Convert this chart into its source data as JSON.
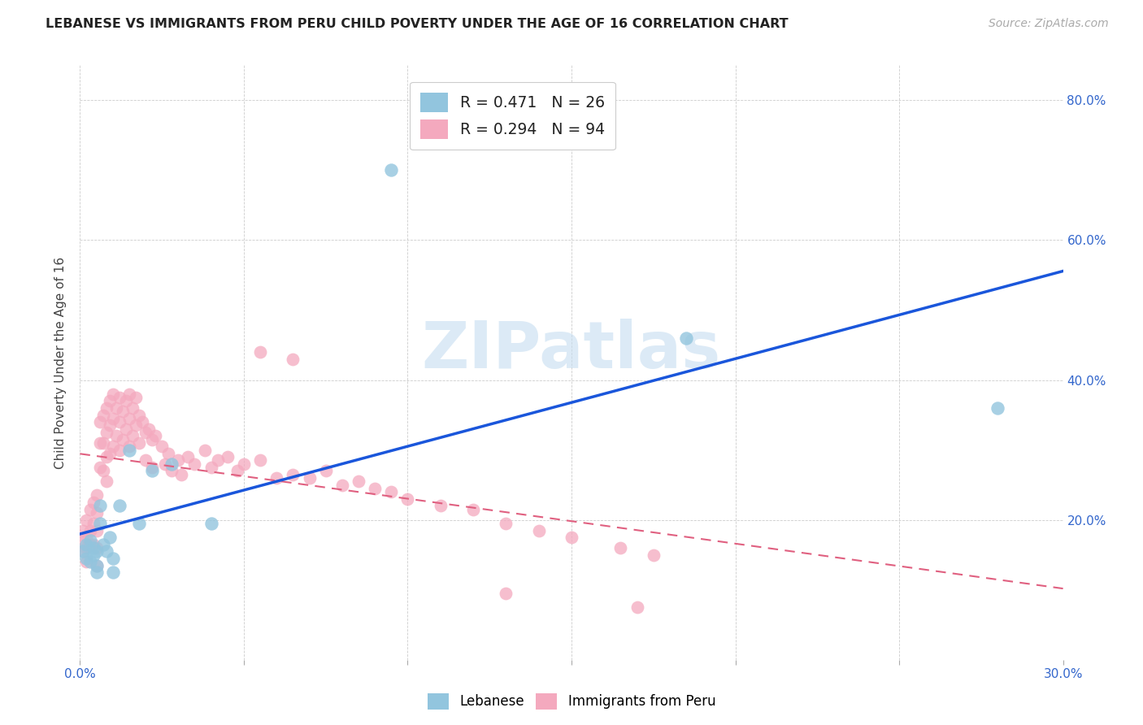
{
  "title": "LEBANESE VS IMMIGRANTS FROM PERU CHILD POVERTY UNDER THE AGE OF 16 CORRELATION CHART",
  "source": "Source: ZipAtlas.com",
  "ylabel": "Child Poverty Under the Age of 16",
  "legend_label1": "Lebanese",
  "legend_label2": "Immigrants from Peru",
  "R1": 0.471,
  "N1": 26,
  "R2": 0.294,
  "N2": 94,
  "color1": "#92c5de",
  "color2": "#f4a9be",
  "line_color1": "#1a56db",
  "line_color2": "#e06080",
  "xlim": [
    0.0,
    0.3
  ],
  "ylim": [
    0.0,
    0.85
  ],
  "xticks": [
    0.0,
    0.05,
    0.1,
    0.15,
    0.2,
    0.25,
    0.3
  ],
  "yticks": [
    0.0,
    0.2,
    0.4,
    0.6,
    0.8
  ],
  "blue_x": [
    0.001,
    0.002,
    0.002,
    0.003,
    0.003,
    0.004,
    0.004,
    0.005,
    0.005,
    0.005,
    0.006,
    0.006,
    0.007,
    0.008,
    0.009,
    0.01,
    0.01,
    0.012,
    0.015,
    0.018,
    0.022,
    0.028,
    0.04,
    0.095,
    0.185,
    0.28
  ],
  "blue_y": [
    0.155,
    0.165,
    0.145,
    0.17,
    0.14,
    0.16,
    0.15,
    0.155,
    0.135,
    0.125,
    0.22,
    0.195,
    0.165,
    0.155,
    0.175,
    0.145,
    0.125,
    0.22,
    0.3,
    0.195,
    0.27,
    0.28,
    0.195,
    0.7,
    0.46,
    0.36
  ],
  "pink_x": [
    0.001,
    0.001,
    0.001,
    0.002,
    0.002,
    0.002,
    0.002,
    0.003,
    0.003,
    0.003,
    0.004,
    0.004,
    0.004,
    0.005,
    0.005,
    0.005,
    0.005,
    0.005,
    0.006,
    0.006,
    0.006,
    0.007,
    0.007,
    0.007,
    0.008,
    0.008,
    0.008,
    0.008,
    0.009,
    0.009,
    0.009,
    0.01,
    0.01,
    0.01,
    0.011,
    0.011,
    0.012,
    0.012,
    0.012,
    0.013,
    0.013,
    0.014,
    0.014,
    0.015,
    0.015,
    0.015,
    0.016,
    0.016,
    0.017,
    0.017,
    0.018,
    0.018,
    0.019,
    0.02,
    0.02,
    0.021,
    0.022,
    0.022,
    0.023,
    0.025,
    0.026,
    0.027,
    0.028,
    0.03,
    0.031,
    0.033,
    0.035,
    0.038,
    0.04,
    0.042,
    0.045,
    0.048,
    0.05,
    0.055,
    0.06,
    0.065,
    0.07,
    0.075,
    0.08,
    0.085,
    0.09,
    0.095,
    0.1,
    0.11,
    0.12,
    0.13,
    0.14,
    0.15,
    0.165,
    0.175,
    0.055,
    0.065,
    0.13,
    0.17
  ],
  "pink_y": [
    0.185,
    0.17,
    0.155,
    0.2,
    0.175,
    0.16,
    0.14,
    0.215,
    0.185,
    0.165,
    0.225,
    0.195,
    0.165,
    0.235,
    0.21,
    0.185,
    0.16,
    0.135,
    0.34,
    0.31,
    0.275,
    0.35,
    0.31,
    0.27,
    0.36,
    0.325,
    0.29,
    0.255,
    0.37,
    0.335,
    0.295,
    0.38,
    0.345,
    0.305,
    0.36,
    0.32,
    0.375,
    0.34,
    0.3,
    0.355,
    0.315,
    0.37,
    0.33,
    0.38,
    0.345,
    0.305,
    0.36,
    0.32,
    0.375,
    0.335,
    0.35,
    0.31,
    0.34,
    0.325,
    0.285,
    0.33,
    0.315,
    0.275,
    0.32,
    0.305,
    0.28,
    0.295,
    0.27,
    0.285,
    0.265,
    0.29,
    0.28,
    0.3,
    0.275,
    0.285,
    0.29,
    0.27,
    0.28,
    0.285,
    0.26,
    0.265,
    0.26,
    0.27,
    0.25,
    0.255,
    0.245,
    0.24,
    0.23,
    0.22,
    0.215,
    0.195,
    0.185,
    0.175,
    0.16,
    0.15,
    0.44,
    0.43,
    0.095,
    0.075
  ]
}
